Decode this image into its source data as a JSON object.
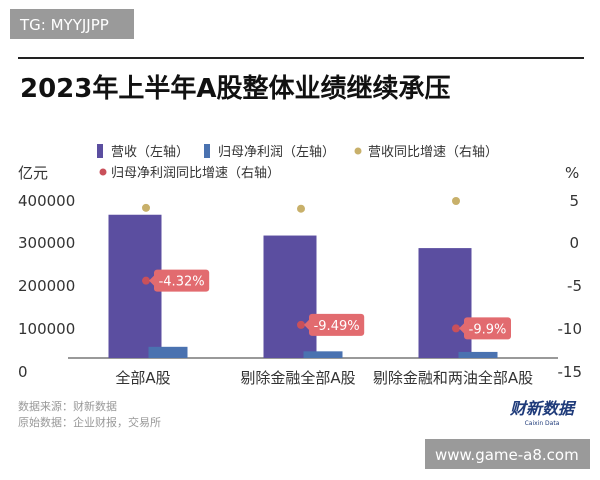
{
  "watermark_top": "TG: MYYJJPP",
  "watermark_bottom": "www.game-a8.com",
  "title": "2023年上半年A股整体业绩继续承压",
  "footer": {
    "source": "数据来源：财新数据",
    "raw_source": "原始数据：企业财报，交易所"
  },
  "logo": {
    "main": "财新数据",
    "sub": "Caixin Data"
  },
  "colors": {
    "revenue": "#5b4ea0",
    "net_profit": "#4a72b0",
    "revenue_growth": "#c8b06a",
    "profit_growth": "#c9505a",
    "callout": "#e26b6f",
    "title_rule": "#222222"
  },
  "chart_data": {
    "type": "bar",
    "categories": [
      "全部A股",
      "剔除金融全部A股",
      "剔除金融和两油全部A股"
    ],
    "left_axis": {
      "unit": "亿元",
      "ticks": [
        "400000",
        "300000",
        "200000",
        "100000",
        "0"
      ],
      "ylim": [
        0,
        400000
      ]
    },
    "right_axis": {
      "unit": "%",
      "ticks": [
        "5",
        "0",
        "-5",
        "-10",
        "-15"
      ],
      "ylim": [
        -15,
        5
      ]
    },
    "series": [
      {
        "name": "营收（左轴）",
        "kind": "bar",
        "axis": "left",
        "values": [
          365000,
          312000,
          280000
        ]
      },
      {
        "name": "归母净利润（左轴）",
        "kind": "bar",
        "axis": "left",
        "values": [
          28500,
          17000,
          15500
        ]
      },
      {
        "name": "营收同比增速（右轴）",
        "kind": "dot",
        "axis": "right",
        "values": [
          4.2,
          4.1,
          5.0
        ]
      },
      {
        "name": "归母净利润同比增速（右轴）",
        "kind": "dot",
        "axis": "right",
        "values": [
          -4.32,
          -9.49,
          -9.9
        ]
      }
    ],
    "data_labels": [
      "-4.32%",
      "-9.49%",
      "-9.9%"
    ],
    "legend_position": "top"
  }
}
